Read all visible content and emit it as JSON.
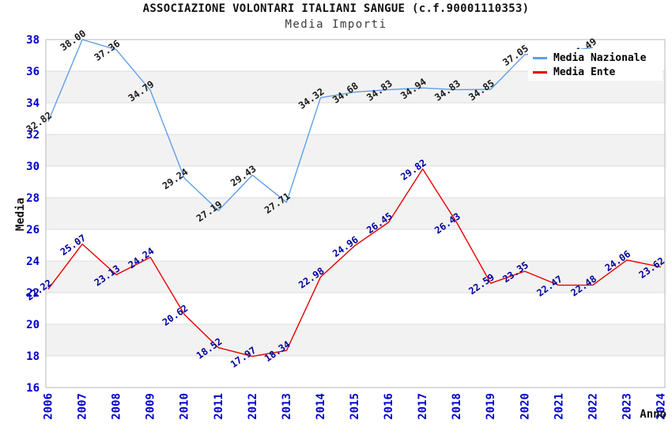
{
  "chart_data": {
    "type": "line",
    "title": "ASSOCIAZIONE VOLONTARI ITALIANI SANGUE (c.f.90001110353)",
    "subtitle": "Media Importi",
    "xlabel": "Anno",
    "ylabel": "Media",
    "ylim": [
      16,
      38
    ],
    "ytick_step": 2,
    "grid": "horizontal-banded",
    "legend_position": "top-right",
    "categories": [
      "2006",
      "2007",
      "2008",
      "2009",
      "2010",
      "2011",
      "2012",
      "2013",
      "2014",
      "2015",
      "2016",
      "2017",
      "2018",
      "2019",
      "2020",
      "2021",
      "2022",
      "2023",
      "2024"
    ],
    "series": [
      {
        "name": "Media Nazionale",
        "color": "#5f9fe8",
        "label_color": "#1a1a1a",
        "values": [
          32.82,
          38.0,
          37.36,
          34.79,
          29.24,
          27.19,
          29.43,
          27.71,
          34.32,
          34.68,
          34.83,
          34.94,
          34.83,
          34.85,
          37.05,
          37.2,
          37.49,
          null,
          null
        ],
        "labels": [
          "32.82",
          "38.00",
          "37.36",
          "34.79",
          "29.24",
          "27.19",
          "29.43",
          "27.71",
          "34.32",
          "34.68",
          "34.83",
          "34.94",
          "34.83",
          "34.85",
          "37.05",
          "",
          "37.49",
          "",
          ""
        ]
      },
      {
        "name": "Media Ente",
        "color": "#e60000",
        "label_color": "#000099",
        "values": [
          22.22,
          25.07,
          23.13,
          24.24,
          20.62,
          18.52,
          17.97,
          18.34,
          22.98,
          24.96,
          26.45,
          29.82,
          26.43,
          22.59,
          23.35,
          22.47,
          22.48,
          24.06,
          23.62
        ],
        "labels": [
          "22.22",
          "25.07",
          "23.13",
          "24.24",
          "20.62",
          "18.52",
          "17.97",
          "18.34",
          "22.98",
          "24.96",
          "26.45",
          "29.82",
          "26.43",
          "22.59",
          "23.35",
          "22.47",
          "22.48",
          "24.06",
          "23.62"
        ]
      }
    ],
    "colors": {
      "tick_label": "#0000cc",
      "band": "#f2f2f2",
      "gridline": "#dcdcdc",
      "plot_border": "#b8b8b8",
      "background": "#ffffff"
    }
  }
}
